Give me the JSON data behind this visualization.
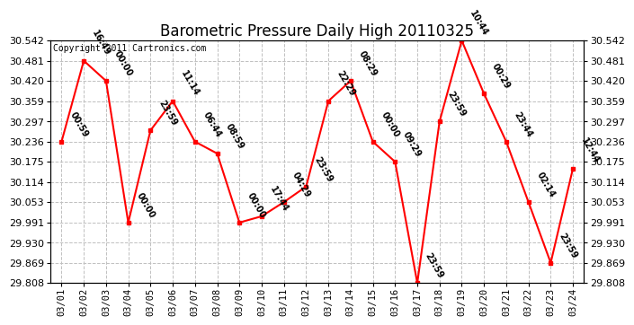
{
  "title": "Barometric Pressure Daily High 20110325",
  "copyright": "Copyright 2011 Cartronics.com",
  "x_labels": [
    "03/01",
    "03/02",
    "03/03",
    "03/04",
    "03/05",
    "03/06",
    "03/07",
    "03/08",
    "03/09",
    "03/10",
    "03/11",
    "03/12",
    "03/13",
    "03/14",
    "03/15",
    "03/16",
    "03/17",
    "03/18",
    "03/19",
    "03/20",
    "03/21",
    "03/22",
    "03/23",
    "03/24"
  ],
  "y_values": [
    30.236,
    30.481,
    30.42,
    29.991,
    30.27,
    30.359,
    30.236,
    30.2,
    29.991,
    30.01,
    30.053,
    30.1,
    30.359,
    30.42,
    30.236,
    30.175,
    29.808,
    30.297,
    30.542,
    30.381,
    30.236,
    30.053,
    29.869,
    30.155
  ],
  "annotations": [
    "00:59",
    "16:49",
    "00:00",
    "00:00",
    "23:59",
    "11:14",
    "06:44",
    "08:59",
    "00:00",
    "17:44",
    "04:29",
    "23:59",
    "22:29",
    "08:29",
    "00:00",
    "09:29",
    "23:59",
    "23:59",
    "10:44",
    "00:29",
    "23:44",
    "02:14",
    "23:59",
    "12:44"
  ],
  "ylim_min": 29.808,
  "ylim_max": 30.542,
  "yticks": [
    30.542,
    30.481,
    30.42,
    30.359,
    30.297,
    30.236,
    30.175,
    30.114,
    30.053,
    29.991,
    29.93,
    29.869,
    29.808
  ],
  "line_color": "red",
  "marker_color": "red",
  "marker_size": 3,
  "bg_color": "white",
  "grid_color": "#c0c0c0",
  "annotation_fontsize": 7,
  "title_fontsize": 12,
  "copyright_fontsize": 7,
  "tick_fontsize": 8,
  "xtick_fontsize": 7.5
}
